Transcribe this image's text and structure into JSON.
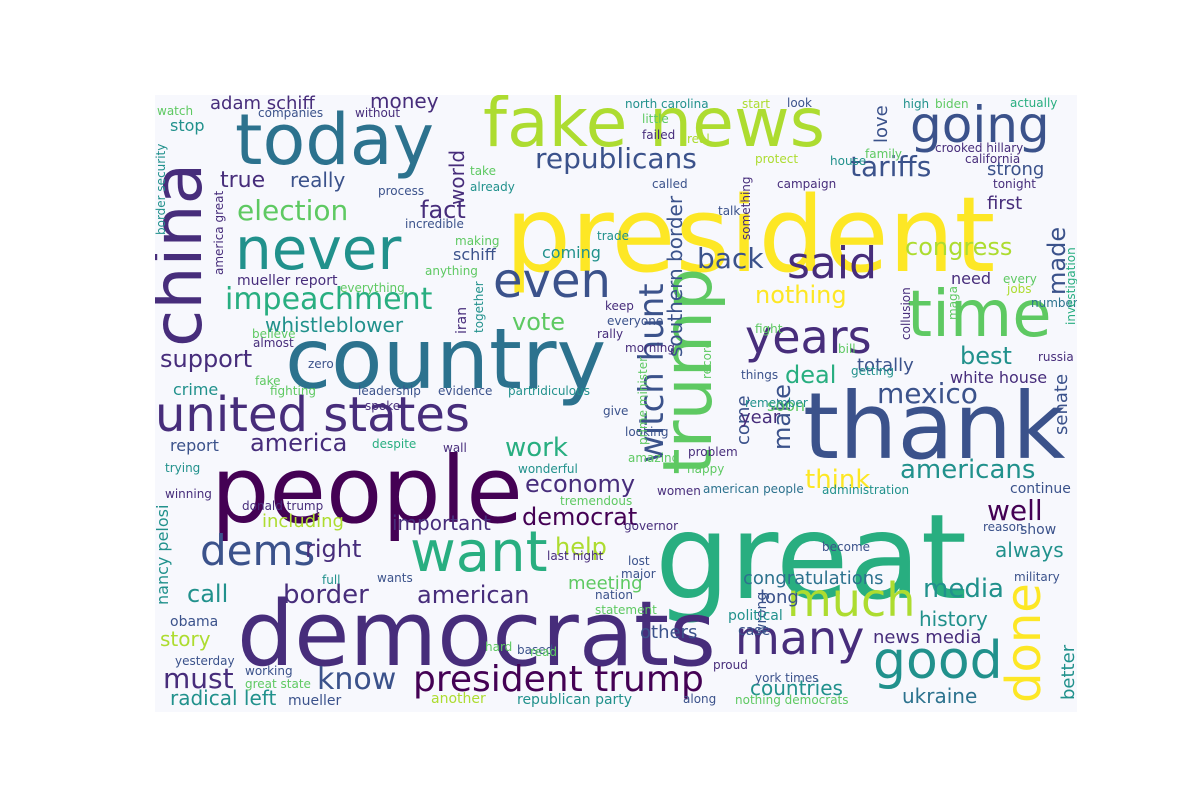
{
  "palette": {
    "background": "#f7f8fd",
    "p0": "#440154",
    "p1": "#472d7b",
    "p2": "#3b528b",
    "p3": "#2c728e",
    "p4": "#21918c",
    "p5": "#28ae80",
    "p6": "#5ec962",
    "p7": "#addc30",
    "p8": "#fde725"
  },
  "words": [
    {
      "text": "president"
    },
    {
      "text": "great"
    },
    {
      "text": "people"
    },
    {
      "text": "democrats"
    },
    {
      "text": "thank"
    },
    {
      "text": "country"
    },
    {
      "text": "fake news"
    },
    {
      "text": "today"
    },
    {
      "text": "china"
    },
    {
      "text": "trump"
    },
    {
      "text": "time"
    },
    {
      "text": "never"
    },
    {
      "text": "want"
    },
    {
      "text": "united states"
    },
    {
      "text": "going"
    },
    {
      "text": "good"
    },
    {
      "text": "much"
    },
    {
      "text": "many"
    },
    {
      "text": "done"
    },
    {
      "text": "dems"
    },
    {
      "text": "president trump"
    },
    {
      "text": "even"
    },
    {
      "text": "said"
    },
    {
      "text": "years"
    },
    {
      "text": "witch hunt"
    },
    {
      "text": "impeachment"
    },
    {
      "text": "election"
    },
    {
      "text": "republicans"
    },
    {
      "text": "know"
    },
    {
      "text": "must"
    },
    {
      "text": "back"
    },
    {
      "text": "tariffs"
    },
    {
      "text": "mexico"
    },
    {
      "text": "well"
    },
    {
      "text": "americans"
    },
    {
      "text": "media"
    },
    {
      "text": "think"
    },
    {
      "text": "economy"
    },
    {
      "text": "democrat"
    },
    {
      "text": "border"
    },
    {
      "text": "american"
    },
    {
      "text": "right"
    },
    {
      "text": "help"
    },
    {
      "text": "work"
    },
    {
      "text": "america"
    },
    {
      "text": "call"
    },
    {
      "text": "support"
    },
    {
      "text": "congress"
    },
    {
      "text": "nothing"
    },
    {
      "text": "deal"
    },
    {
      "text": "best"
    },
    {
      "text": "true"
    },
    {
      "text": "fact"
    },
    {
      "text": "vote"
    },
    {
      "text": "whistleblower"
    },
    {
      "text": "really"
    },
    {
      "text": "world"
    },
    {
      "text": "made"
    },
    {
      "text": "make"
    },
    {
      "text": "adam schiff"
    },
    {
      "text": "money"
    },
    {
      "text": "strong"
    },
    {
      "text": "first"
    },
    {
      "text": "love"
    },
    {
      "text": "southern border"
    },
    {
      "text": "totally"
    },
    {
      "text": "white house"
    },
    {
      "text": "history"
    },
    {
      "text": "countries"
    },
    {
      "text": "ukraine"
    },
    {
      "text": "congratulations"
    },
    {
      "text": "always"
    },
    {
      "text": "important"
    },
    {
      "text": "including"
    },
    {
      "text": "story"
    },
    {
      "text": "radical left"
    },
    {
      "text": "news media"
    },
    {
      "text": "come"
    },
    {
      "text": "year"
    },
    {
      "text": "others"
    },
    {
      "text": "meeting"
    },
    {
      "text": "long"
    },
    {
      "text": "better"
    },
    {
      "text": "senate"
    },
    {
      "text": "nancy pelosi"
    },
    {
      "text": "report"
    },
    {
      "text": "crime"
    },
    {
      "text": "stop"
    },
    {
      "text": "need"
    },
    {
      "text": "soon"
    },
    {
      "text": "coming"
    },
    {
      "text": "schiff"
    },
    {
      "text": "mueller report"
    },
    {
      "text": "continue"
    },
    {
      "text": "show"
    },
    {
      "text": "wrong"
    },
    {
      "text": "obama"
    },
    {
      "text": "case"
    },
    {
      "text": "political"
    },
    {
      "text": "mueller"
    },
    {
      "text": "republican party"
    },
    {
      "text": "nothing democrats"
    },
    {
      "text": "york times"
    },
    {
      "text": "proud"
    },
    {
      "text": "american people"
    },
    {
      "text": "administration"
    },
    {
      "text": "north carolina"
    },
    {
      "text": "look"
    },
    {
      "text": "biden"
    },
    {
      "text": "high"
    },
    {
      "text": "actually"
    },
    {
      "text": "crooked hillary"
    },
    {
      "text": "california"
    },
    {
      "text": "tonight"
    },
    {
      "text": "family"
    },
    {
      "text": "house"
    },
    {
      "text": "protect"
    },
    {
      "text": "real"
    },
    {
      "text": "little"
    },
    {
      "text": "failed"
    },
    {
      "text": "called"
    },
    {
      "text": "campaign"
    },
    {
      "text": "take"
    },
    {
      "text": "already"
    },
    {
      "text": "without"
    },
    {
      "text": "companies"
    },
    {
      "text": "watch"
    },
    {
      "text": "start"
    },
    {
      "text": "process"
    },
    {
      "text": "talk"
    },
    {
      "text": "something"
    },
    {
      "text": "incredible"
    },
    {
      "text": "making"
    },
    {
      "text": "trade"
    },
    {
      "text": "anything"
    },
    {
      "text": "everything"
    },
    {
      "text": "together"
    },
    {
      "text": "iran"
    },
    {
      "text": "keep"
    },
    {
      "text": "everyone"
    },
    {
      "text": "rally"
    },
    {
      "text": "morning"
    },
    {
      "text": "record"
    },
    {
      "text": "things"
    },
    {
      "text": "remember"
    },
    {
      "text": "bill"
    },
    {
      "text": "getting"
    },
    {
      "text": "collusion"
    },
    {
      "text": "maga"
    },
    {
      "text": "jobs"
    },
    {
      "text": "every"
    },
    {
      "text": "number"
    },
    {
      "text": "investigation"
    },
    {
      "text": "russia"
    },
    {
      "text": "fight"
    },
    {
      "text": "border security"
    },
    {
      "text": "america great"
    },
    {
      "text": "believe"
    },
    {
      "text": "almost"
    },
    {
      "text": "zero"
    },
    {
      "text": "fake"
    },
    {
      "text": "fighting"
    },
    {
      "text": "leadership"
    },
    {
      "text": "evidence"
    },
    {
      "text": "part"
    },
    {
      "text": "ridiculous"
    },
    {
      "text": "spoke"
    },
    {
      "text": "give"
    },
    {
      "text": "despite"
    },
    {
      "text": "wall"
    },
    {
      "text": "looking"
    },
    {
      "text": "amazing"
    },
    {
      "text": "wonderful"
    },
    {
      "text": "trying"
    },
    {
      "text": "happy"
    },
    {
      "text": "problem"
    },
    {
      "text": "winning"
    },
    {
      "text": "women"
    },
    {
      "text": "tremendous"
    },
    {
      "text": "donald trump"
    },
    {
      "text": "governor"
    },
    {
      "text": "reason"
    },
    {
      "text": "lost"
    },
    {
      "text": "become"
    },
    {
      "text": "last night"
    },
    {
      "text": "major"
    },
    {
      "text": "military"
    },
    {
      "text": "full"
    },
    {
      "text": "wants"
    },
    {
      "text": "nation"
    },
    {
      "text": "statement"
    },
    {
      "text": "hard"
    },
    {
      "text": "based"
    },
    {
      "text": "read"
    },
    {
      "text": "yesterday"
    },
    {
      "text": "working"
    },
    {
      "text": "great state"
    },
    {
      "text": "another"
    },
    {
      "text": "along"
    },
    {
      "text": "prime minister"
    }
  ]
}
